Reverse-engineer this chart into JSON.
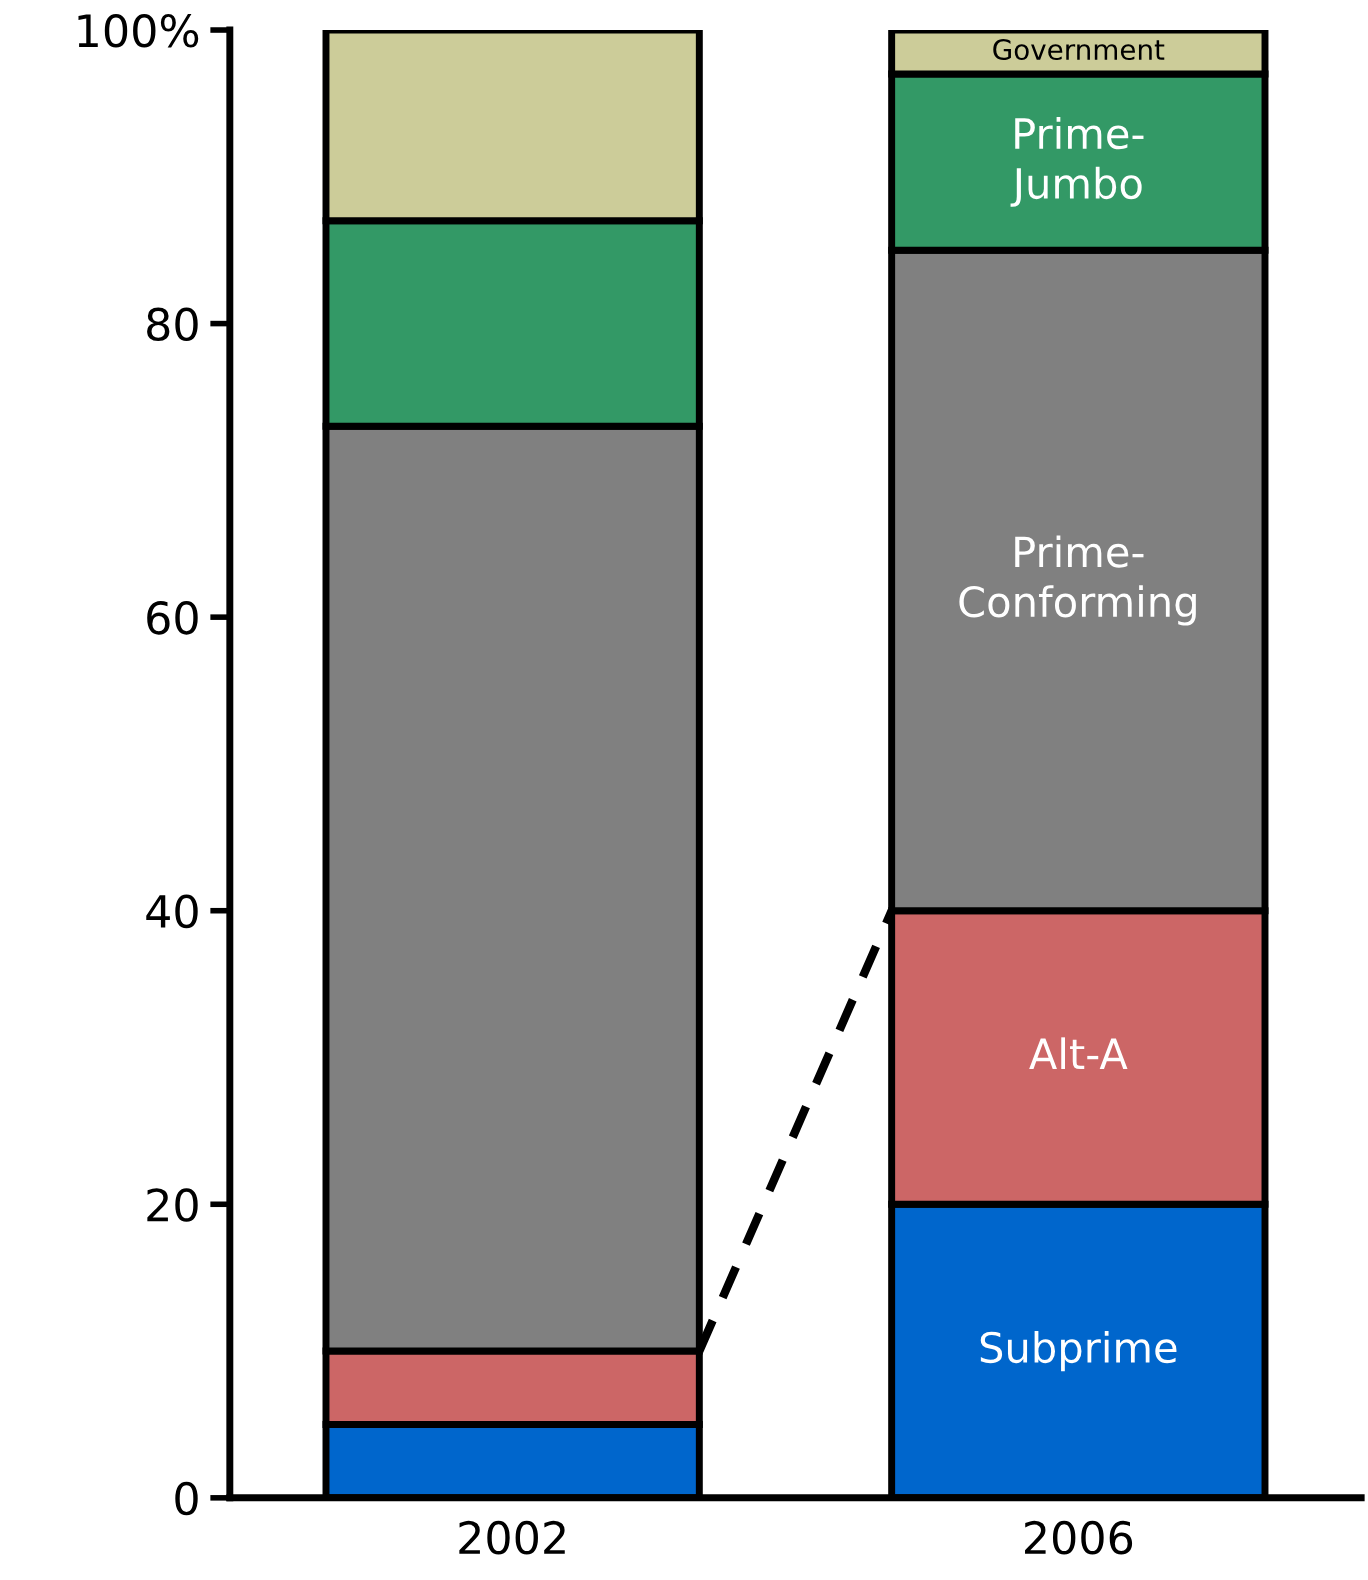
{
  "chart_data": {
    "type": "bar",
    "stacked": true,
    "categories": [
      "2002",
      "2006"
    ],
    "series": [
      {
        "name": "Subprime",
        "color": "#0066cc",
        "values": [
          5,
          20
        ]
      },
      {
        "name": "Alt-A",
        "color": "#cc6666",
        "values": [
          5,
          20
        ]
      },
      {
        "name": "Prime-\nConforming",
        "color": "#808080",
        "values": [
          63,
          45
        ]
      },
      {
        "name": "Prime-\nJumbo",
        "color": "#339966",
        "values": [
          14,
          12
        ]
      },
      {
        "name": "Government",
        "color": "#cccc99",
        "values": [
          13,
          3
        ]
      }
    ],
    "ylim": [
      0,
      100
    ],
    "yticks": [
      0,
      20,
      40,
      60,
      80,
      {
        "value": 100,
        "label": "100%"
      }
    ],
    "grid": false,
    "legend": false
  }
}
